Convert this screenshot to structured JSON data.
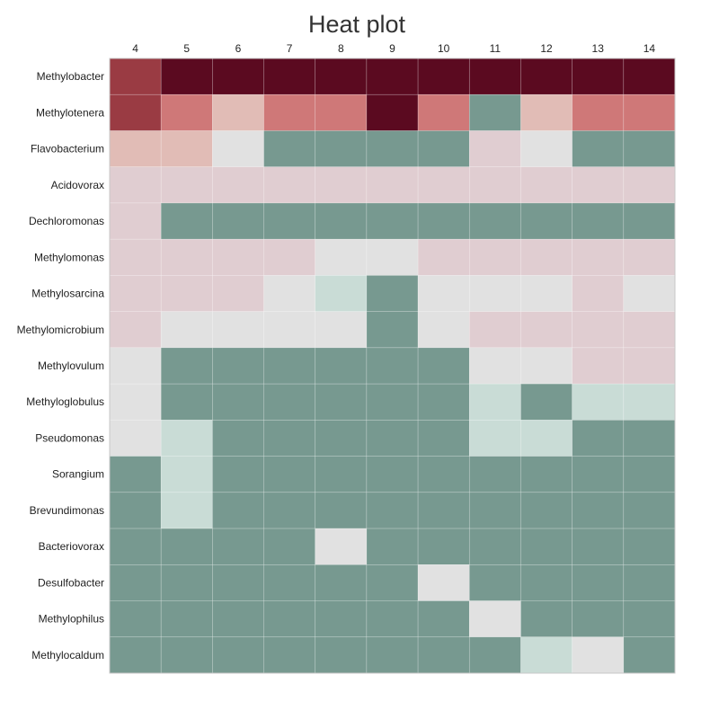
{
  "chart_data": {
    "type": "heatmap",
    "title": "Heat plot",
    "xlabel": "",
    "ylabel": "",
    "columns": [
      "4",
      "5",
      "6",
      "7",
      "8",
      "9",
      "10",
      "11",
      "12",
      "13",
      "14"
    ],
    "rows": [
      "Methylobacter",
      "Methylotenera",
      "Flavobacterium",
      "Acidovorax",
      "Dechloromonas",
      "Methylomonas",
      "Methylosarcina",
      "Methylomicrobium",
      "Methylovulum",
      "Methyloglobulus",
      "Pseudomonas",
      "Sorangium",
      "Brevundimonas",
      "Bacteriovorax",
      "Desulfobacter",
      "Methylophilus",
      "Methylocaldum"
    ],
    "color_levels": [
      "#779990",
      "#c9dcd6",
      "#e1e1e1",
      "#e0cdd1",
      "#e1bcb6",
      "#cf7878",
      "#9a3b43",
      "#5b0a20"
    ],
    "values": [
      [
        6,
        7,
        7,
        7,
        7,
        7,
        7,
        7,
        7,
        7,
        7
      ],
      [
        6,
        5,
        4,
        5,
        5,
        7,
        5,
        0,
        4,
        5,
        5
      ],
      [
        4,
        4,
        2,
        0,
        0,
        0,
        0,
        3,
        2,
        0,
        0
      ],
      [
        3,
        3,
        3,
        3,
        3,
        3,
        3,
        3,
        3,
        3,
        3
      ],
      [
        3,
        0,
        0,
        0,
        0,
        0,
        0,
        0,
        0,
        0,
        0
      ],
      [
        3,
        3,
        3,
        3,
        2,
        2,
        3,
        3,
        3,
        3,
        3
      ],
      [
        3,
        3,
        3,
        2,
        1,
        0,
        2,
        2,
        2,
        3,
        2
      ],
      [
        3,
        2,
        2,
        2,
        2,
        0,
        2,
        3,
        3,
        3,
        3
      ],
      [
        2,
        0,
        0,
        0,
        0,
        0,
        0,
        2,
        2,
        3,
        3
      ],
      [
        2,
        0,
        0,
        0,
        0,
        0,
        0,
        1,
        0,
        1,
        1
      ],
      [
        2,
        1,
        0,
        0,
        0,
        0,
        0,
        1,
        1,
        0,
        0
      ],
      [
        0,
        1,
        0,
        0,
        0,
        0,
        0,
        0,
        0,
        0,
        0
      ],
      [
        0,
        1,
        0,
        0,
        0,
        0,
        0,
        0,
        0,
        0,
        0
      ],
      [
        0,
        0,
        0,
        0,
        2,
        0,
        0,
        0,
        0,
        0,
        0
      ],
      [
        0,
        0,
        0,
        0,
        0,
        0,
        2,
        0,
        0,
        0,
        0
      ],
      [
        0,
        0,
        0,
        0,
        0,
        0,
        0,
        2,
        0,
        0,
        0
      ],
      [
        0,
        0,
        0,
        0,
        0,
        0,
        0,
        0,
        1,
        2,
        0
      ]
    ],
    "legend": false,
    "grid": true
  }
}
